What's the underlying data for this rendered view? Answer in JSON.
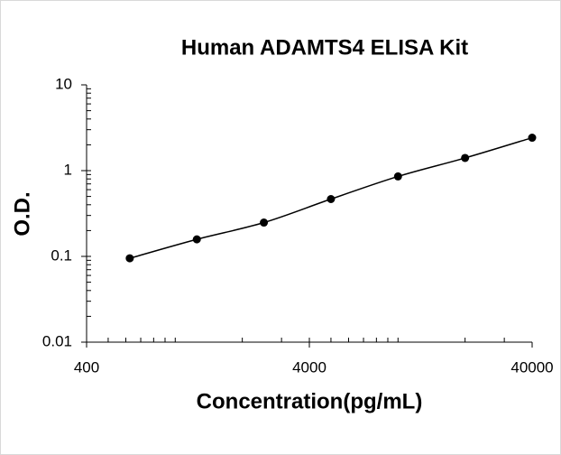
{
  "chart_data": {
    "type": "scatter",
    "title": "Human ADAMTS4 ELISA Kit",
    "x_label": "Concentration(pg/mL)",
    "y_label": "O.D.",
    "x": [
      625,
      1250,
      2500,
      5000,
      10000,
      20000,
      40000
    ],
    "series": [
      {
        "color": "#000000",
        "values": [
          0.095,
          0.158,
          0.248,
          0.466,
          0.856,
          1.405,
          2.42
        ]
      }
    ],
    "xlim": [
      400,
      40000
    ],
    "xticks": [
      400,
      4000,
      40000
    ],
    "xlog": true,
    "ylim": [
      0.01,
      10
    ],
    "yticks": [
      0.01,
      0.1,
      1,
      10
    ],
    "ylog": true,
    "trendline": true
  }
}
